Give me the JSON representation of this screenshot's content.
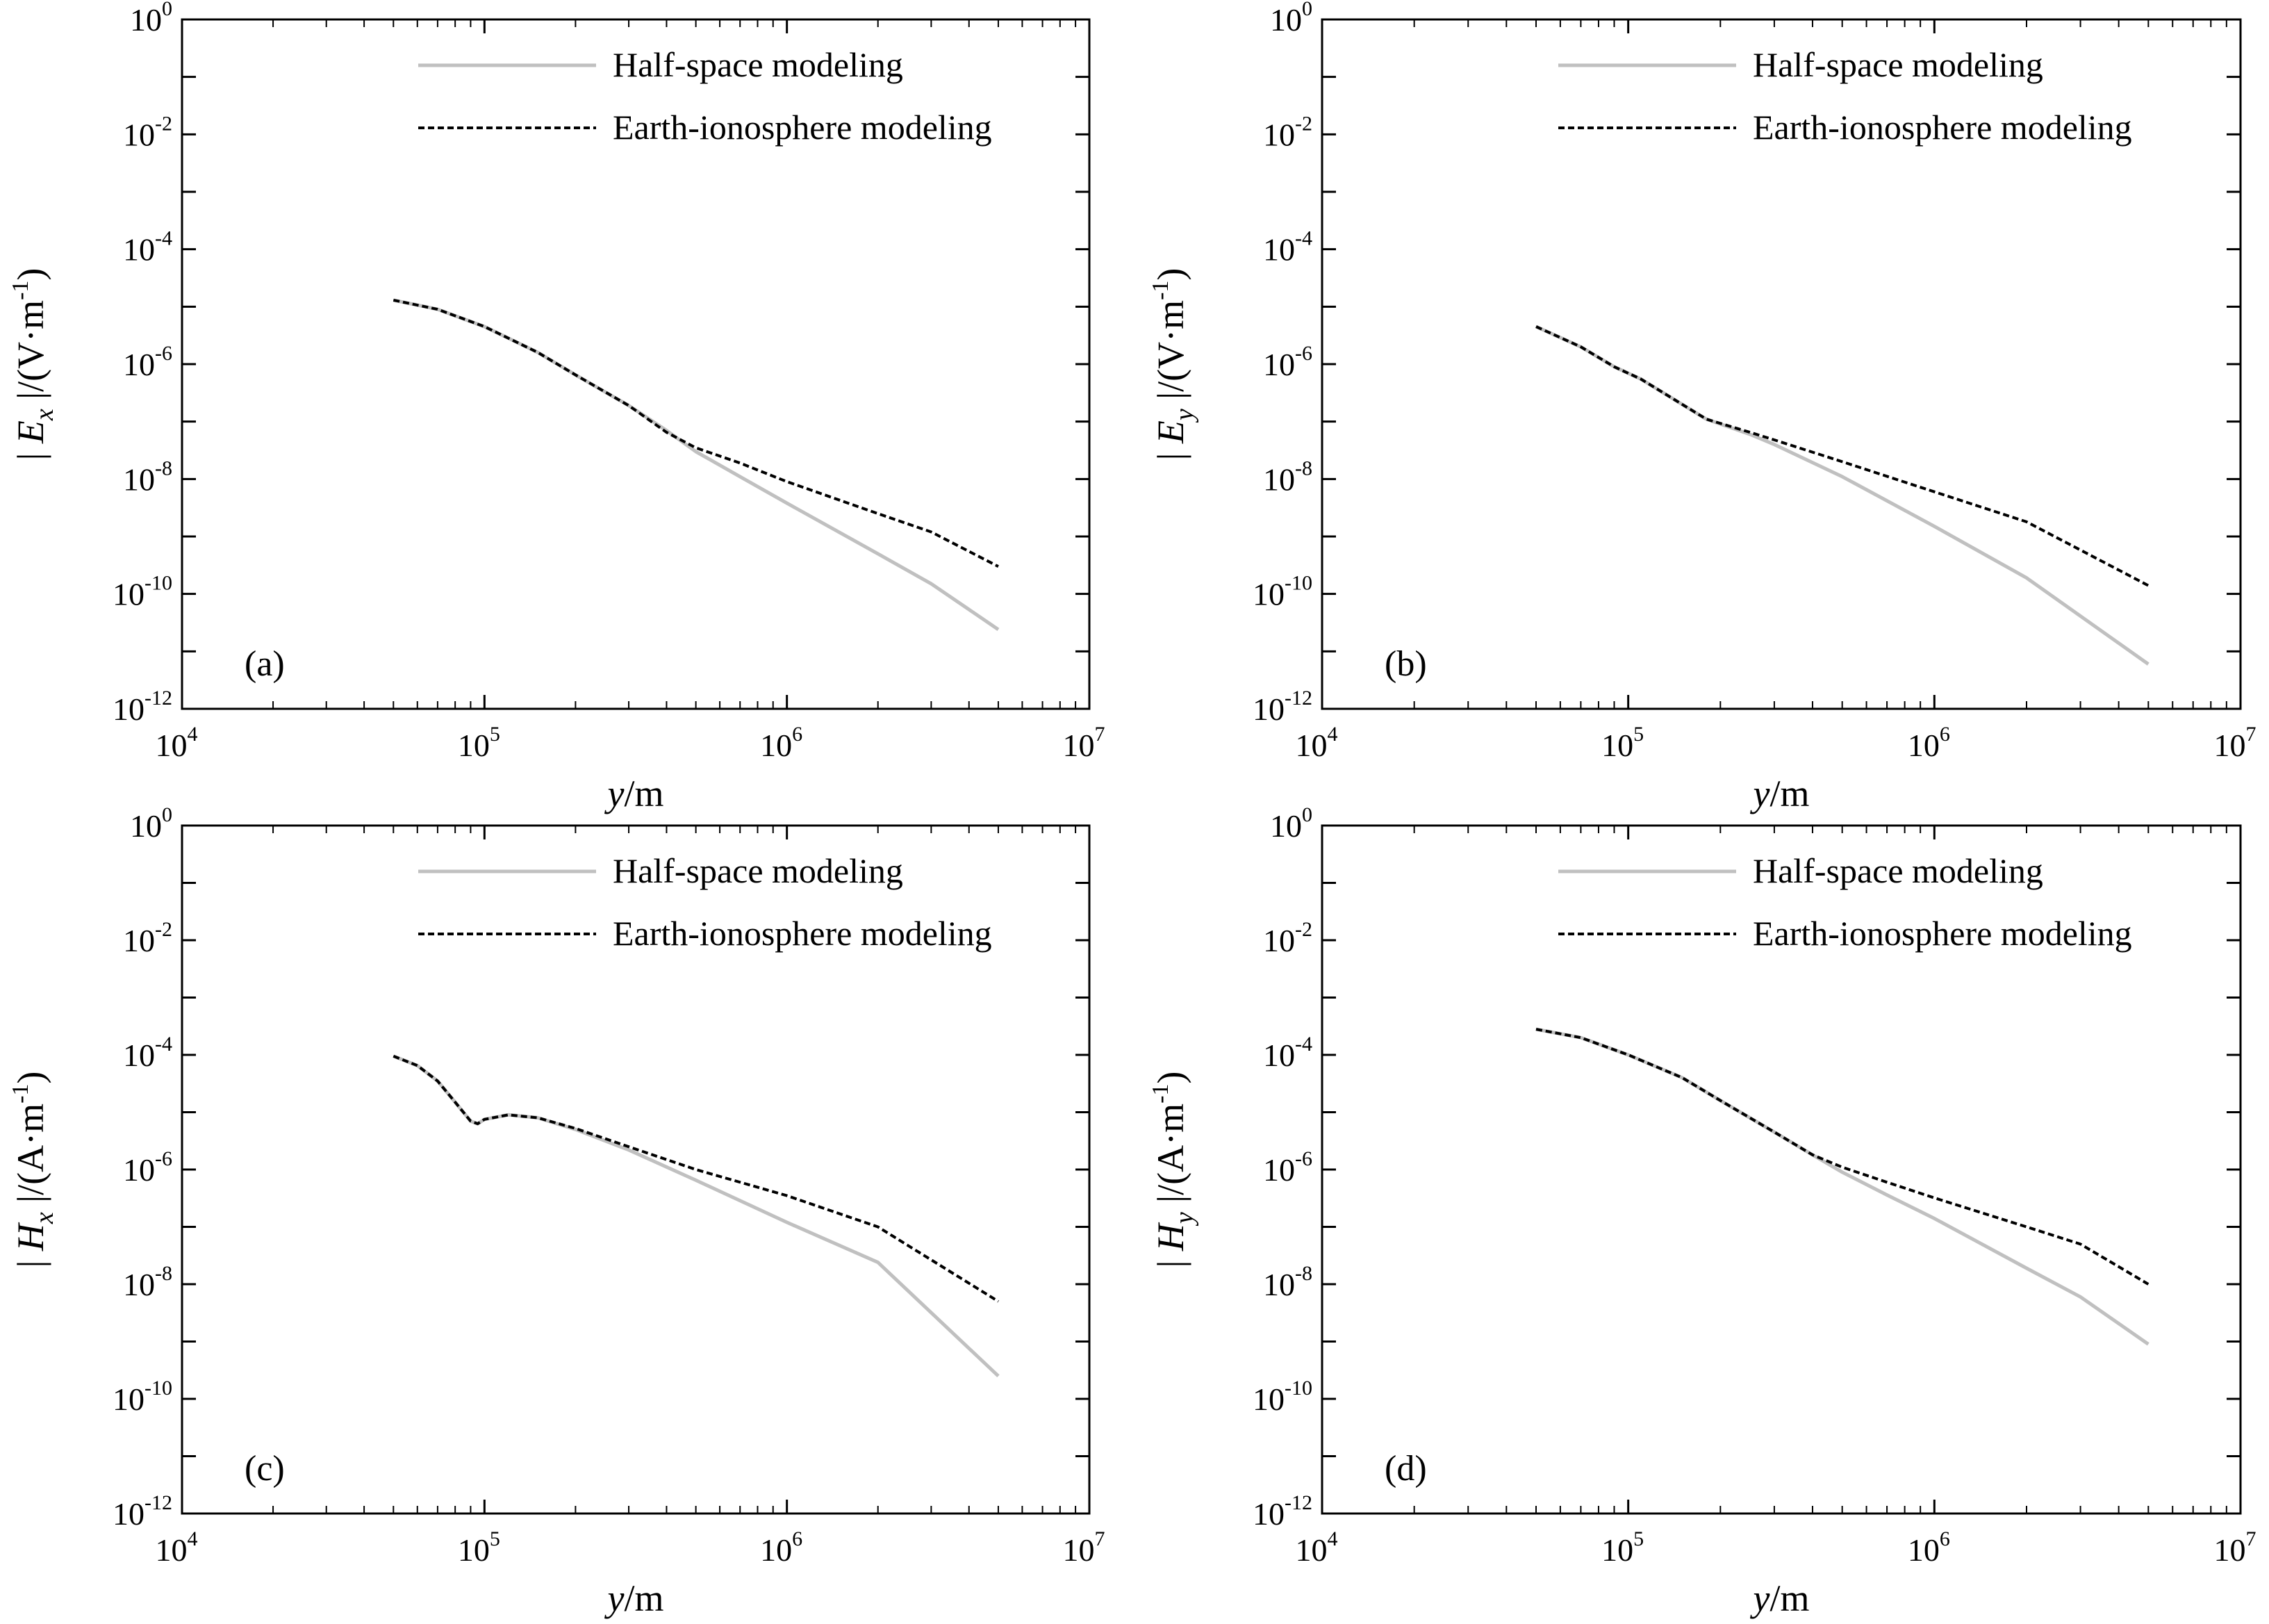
{
  "colors": {
    "half_space": "#c0c0c0",
    "earth_ionosphere": "#000000",
    "axes": "#000000",
    "background": "#ffffff"
  },
  "chart_data": [
    {
      "type": "line",
      "panel": "(a)",
      "xscale": "log",
      "yscale": "log",
      "xlim": [
        10000,
        10000000
      ],
      "ylim": [
        1e-12,
        1
      ],
      "x_ticks": [
        "4",
        "5",
        "6",
        "7"
      ],
      "y_ticks": [
        "0",
        "-2",
        "-4",
        "-6",
        "-8",
        "-10",
        "-12"
      ],
      "xlabel": {
        "var": "y",
        "unit": "/m"
      },
      "ylabel": {
        "pre": "| ",
        "var": "E",
        "sub": "x",
        "post": " |/(V·m",
        "sup": "-1",
        "end": ")"
      },
      "grid": false,
      "legend_position": "top-right",
      "series": [
        {
          "name": "Half-space modeling",
          "style": "solid",
          "color": "#c0c0c0",
          "x": [
            50000,
            70000,
            100000,
            150000,
            200000,
            300000,
            400000,
            500000,
            700000,
            1000000,
            2000000,
            3000000,
            5000000
          ],
          "y": [
            1.3e-05,
            9e-06,
            4.5e-06,
            1.6e-06,
            6.5e-07,
            1.9e-07,
            7e-08,
            3e-08,
            1.1e-08,
            3.8e-09,
            5e-10,
            1.5e-10,
            2.4e-11
          ]
        },
        {
          "name": "Earth-ionosphere modeling",
          "style": "dashed",
          "color": "#000000",
          "x": [
            50000,
            70000,
            100000,
            150000,
            200000,
            300000,
            400000,
            500000,
            700000,
            1000000,
            2000000,
            3000000,
            5000000
          ],
          "y": [
            1.3e-05,
            9e-06,
            4.5e-06,
            1.6e-06,
            6.5e-07,
            1.9e-07,
            6.5e-08,
            3.5e-08,
            1.9e-08,
            9e-09,
            2.5e-09,
            1.2e-09,
            3e-10
          ]
        }
      ]
    },
    {
      "type": "line",
      "panel": "(b)",
      "xscale": "log",
      "yscale": "log",
      "xlim": [
        10000,
        10000000
      ],
      "ylim": [
        1e-12,
        1
      ],
      "x_ticks": [
        "4",
        "5",
        "6",
        "7"
      ],
      "y_ticks": [
        "0",
        "-2",
        "-4",
        "-6",
        "-8",
        "-10",
        "-12"
      ],
      "xlabel": {
        "var": "y",
        "unit": "/m"
      },
      "ylabel": {
        "pre": "| ",
        "var": "E",
        "sub": "y",
        "post": " |/(V·m",
        "sup": "-1",
        "end": ")"
      },
      "grid": false,
      "legend_position": "top-right",
      "series": [
        {
          "name": "Half-space modeling",
          "style": "solid",
          "color": "#c0c0c0",
          "x": [
            50000,
            70000,
            90000,
            110000,
            140000,
            180000,
            250000,
            300000,
            500000,
            1000000,
            2000000,
            5000000
          ],
          "y": [
            4.5e-06,
            2e-06,
            9e-07,
            5.5e-07,
            2.5e-07,
            1.1e-07,
            6e-08,
            4e-08,
            1.1e-08,
            1.5e-09,
            1.9e-10,
            6e-12
          ]
        },
        {
          "name": "Earth-ionosphere modeling",
          "style": "dashed",
          "color": "#000000",
          "x": [
            50000,
            70000,
            90000,
            110000,
            140000,
            180000,
            250000,
            300000,
            500000,
            1000000,
            2000000,
            5000000
          ],
          "y": [
            4.5e-06,
            2e-06,
            9e-07,
            5.5e-07,
            2.5e-07,
            1.1e-07,
            6.5e-08,
            4.8e-08,
            2e-08,
            6e-09,
            1.8e-09,
            1.4e-10
          ]
        }
      ]
    },
    {
      "type": "line",
      "panel": "(c)",
      "xscale": "log",
      "yscale": "log",
      "xlim": [
        10000,
        10000000
      ],
      "ylim": [
        1e-12,
        1
      ],
      "x_ticks": [
        "4",
        "5",
        "6",
        "7"
      ],
      "y_ticks": [
        "0",
        "-2",
        "-4",
        "-6",
        "-8",
        "-10",
        "-12"
      ],
      "xlabel": {
        "var": "y",
        "unit": "/m"
      },
      "ylabel": {
        "pre": "| ",
        "var": "H",
        "sub": "x",
        "post": " |/(A·m",
        "sup": "-1",
        "end": ")"
      },
      "grid": false,
      "legend_position": "top-right",
      "series": [
        {
          "name": "Half-space modeling",
          "style": "solid",
          "color": "#c0c0c0",
          "x": [
            50000,
            60000,
            70000,
            80000,
            90000,
            95000,
            100000,
            120000,
            150000,
            200000,
            300000,
            500000,
            1000000,
            2000000,
            5000000
          ],
          "y": [
            9.5e-05,
            6.5e-05,
            3.5e-05,
            1.5e-05,
            7e-06,
            6.3e-06,
            7.5e-06,
            9e-06,
            8e-06,
            5e-06,
            2.2e-06,
            6.5e-07,
            1.2e-07,
            2.4e-08,
            2.5e-10
          ]
        },
        {
          "name": "Earth-ionosphere modeling",
          "style": "dashed",
          "color": "#000000",
          "x": [
            50000,
            60000,
            70000,
            80000,
            90000,
            95000,
            100000,
            120000,
            150000,
            200000,
            300000,
            500000,
            1000000,
            2000000,
            5000000
          ],
          "y": [
            9.5e-05,
            6.5e-05,
            3.5e-05,
            1.5e-05,
            7e-06,
            6.3e-06,
            7.5e-06,
            9e-06,
            8e-06,
            5.2e-06,
            2.5e-06,
            1e-06,
            3.5e-07,
            1e-07,
            5e-09
          ]
        }
      ]
    },
    {
      "type": "line",
      "panel": "(d)",
      "xscale": "log",
      "yscale": "log",
      "xlim": [
        10000,
        10000000
      ],
      "ylim": [
        1e-12,
        1
      ],
      "x_ticks": [
        "4",
        "5",
        "6",
        "7"
      ],
      "y_ticks": [
        "0",
        "-2",
        "-4",
        "-6",
        "-8",
        "-10",
        "-12"
      ],
      "xlabel": {
        "var": "y",
        "unit": "/m"
      },
      "ylabel": {
        "pre": "| ",
        "var": "H",
        "sub": "y",
        "post": " |/(A·m",
        "sup": "-1",
        "end": ")"
      },
      "grid": false,
      "legend_position": "top-right",
      "series": [
        {
          "name": "Half-space modeling",
          "style": "solid",
          "color": "#c0c0c0",
          "x": [
            50000,
            70000,
            100000,
            150000,
            200000,
            300000,
            400000,
            500000,
            700000,
            1000000,
            2000000,
            3000000,
            5000000
          ],
          "y": [
            0.00028,
            0.0002,
            0.0001,
            4e-05,
            1.6e-05,
            4.5e-06,
            1.8e-06,
            9e-07,
            3.6e-07,
            1.4e-07,
            1.9e-08,
            6e-09,
            9e-10
          ]
        },
        {
          "name": "Earth-ionosphere modeling",
          "style": "dashed",
          "color": "#000000",
          "x": [
            50000,
            70000,
            100000,
            150000,
            200000,
            300000,
            400000,
            500000,
            700000,
            1000000,
            2000000,
            3000000,
            5000000
          ],
          "y": [
            0.00028,
            0.0002,
            0.0001,
            4e-05,
            1.6e-05,
            4.5e-06,
            1.8e-06,
            1.1e-06,
            6e-07,
            3.2e-07,
            1e-07,
            5e-08,
            1e-08
          ]
        }
      ]
    }
  ]
}
